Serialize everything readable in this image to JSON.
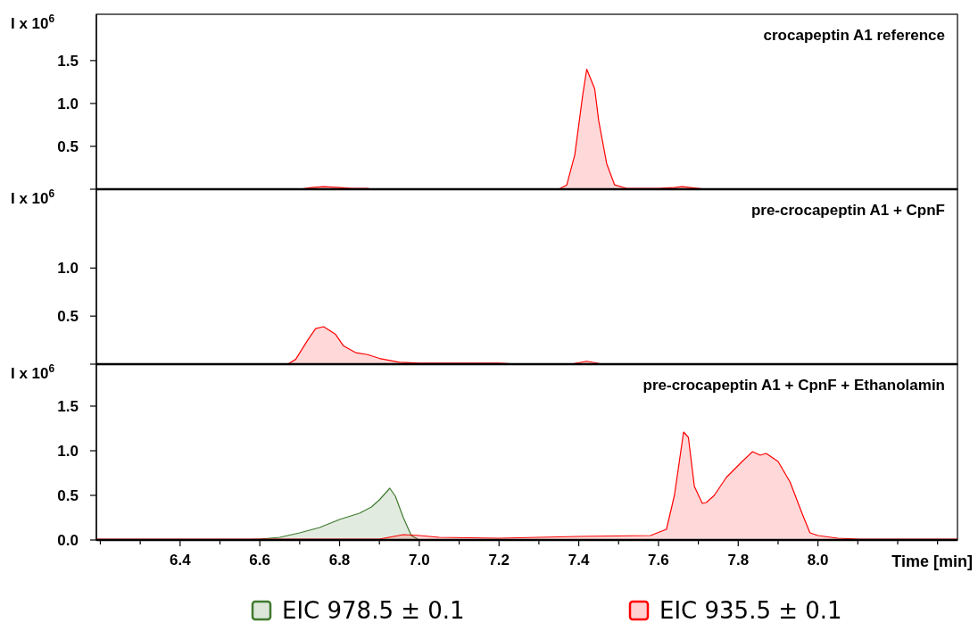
{
  "chart_data": [
    {
      "type": "area",
      "title": "crocapeptin A1 reference",
      "ylabel": "I x 10$^{6}$",
      "xlim": [
        6.19,
        8.35
      ],
      "ylim": [
        0,
        2.04
      ],
      "yticks": [
        {
          "value": 0,
          "label": null
        },
        {
          "value": 0.5,
          "label": "0.5"
        },
        {
          "value": 1.0,
          "label": "1.0"
        },
        {
          "value": 1.5,
          "label": "1.5"
        }
      ],
      "tick_labels": "y",
      "legend": false,
      "series": [
        {
          "color": "#ff0000",
          "x": [
            6.19,
            6.7,
            6.73,
            6.76,
            6.8,
            6.83,
            6.87,
            6.88,
            7.35,
            7.37,
            7.39,
            7.41,
            7.42,
            7.44,
            7.45,
            7.47,
            7.49,
            7.52,
            7.6,
            7.64,
            7.66,
            7.7,
            7.72,
            8.35
          ],
          "values": [
            0,
            0,
            0.02,
            0.03,
            0.02,
            0.01,
            0.01,
            0,
            0,
            0.05,
            0.4,
            1.1,
            1.4,
            1.17,
            0.8,
            0.3,
            0.05,
            0.01,
            0.01,
            0.02,
            0.03,
            0.01,
            0,
            0
          ]
        }
      ]
    },
    {
      "type": "area",
      "title": "pre-crocapeptin A1 + CpnF",
      "ylabel": "I x 10$^{6}$",
      "xlim": [
        6.19,
        8.35
      ],
      "ylim": [
        0,
        1.82
      ],
      "yticks": [
        {
          "value": 0,
          "label": null
        },
        {
          "value": 0.5,
          "label": "0.5"
        },
        {
          "value": 1.0,
          "label": "1.0"
        }
      ],
      "tick_labels": "y",
      "legend": false,
      "series": [
        {
          "color": "#ff0000",
          "x": [
            6.19,
            6.67,
            6.69,
            6.72,
            6.74,
            6.76,
            6.79,
            6.81,
            6.84,
            6.87,
            6.9,
            6.95,
            7.0,
            7.2,
            7.25,
            7.38,
            7.42,
            7.46,
            8.35
          ],
          "values": [
            0,
            0,
            0.05,
            0.25,
            0.37,
            0.39,
            0.31,
            0.19,
            0.12,
            0.1,
            0.06,
            0.02,
            0.01,
            0.01,
            0,
            0,
            0.03,
            0,
            0
          ]
        }
      ]
    },
    {
      "type": "area",
      "title": "pre-crocapeptin A1 + CpnF + Ethanolamin",
      "ylabel": "I x 10$^{6}$",
      "xlabel": "Time [min]",
      "xlim": [
        6.19,
        8.35
      ],
      "ylim": [
        0,
        1.97
      ],
      "xticks": [
        {
          "value": 6.2,
          "label": null
        },
        {
          "value": 6.3,
          "label": null
        },
        {
          "value": 6.4,
          "label": "6.4"
        },
        {
          "value": 6.5,
          "label": null
        },
        {
          "value": 6.6,
          "label": "6.6"
        },
        {
          "value": 6.7,
          "label": null
        },
        {
          "value": 6.8,
          "label": "6.8"
        },
        {
          "value": 6.9,
          "label": null
        },
        {
          "value": 7.0,
          "label": "7.0"
        },
        {
          "value": 7.1,
          "label": null
        },
        {
          "value": 7.2,
          "label": "7.2"
        },
        {
          "value": 7.3,
          "label": null
        },
        {
          "value": 7.4,
          "label": "7.4"
        },
        {
          "value": 7.5,
          "label": null
        },
        {
          "value": 7.6,
          "label": "7.6"
        },
        {
          "value": 7.7,
          "label": null
        },
        {
          "value": 7.8,
          "label": "7.8"
        },
        {
          "value": 7.9,
          "label": null
        },
        {
          "value": 8.0,
          "label": "8.0"
        },
        {
          "value": 8.1,
          "label": null
        },
        {
          "value": 8.2,
          "label": null
        },
        {
          "value": 8.3,
          "label": null
        }
      ],
      "yticks": [
        {
          "value": 0,
          "label": "0.0"
        },
        {
          "value": 0.5,
          "label": "0.5"
        },
        {
          "value": 1.0,
          "label": "1.0"
        },
        {
          "value": 1.5,
          "label": "1.5"
        }
      ],
      "legend": "bottom",
      "series": [
        {
          "name": "EIC 978.5 ± 0.1",
          "color": "#3f7a2e",
          "x": [
            6.19,
            6.55,
            6.6,
            6.65,
            6.7,
            6.75,
            6.8,
            6.85,
            6.88,
            6.9,
            6.926,
            6.94,
            6.96,
            6.98,
            7.0,
            8.35
          ],
          "values": [
            0,
            0,
            0.01,
            0.03,
            0.08,
            0.14,
            0.23,
            0.3,
            0.37,
            0.45,
            0.58,
            0.49,
            0.25,
            0.05,
            0,
            0
          ]
        },
        {
          "name": "EIC 935.5 ± 0.1",
          "color": "#ff0000",
          "x": [
            6.19,
            6.9,
            6.96,
            7.0,
            7.05,
            7.2,
            7.4,
            7.58,
            7.62,
            7.64,
            7.663,
            7.675,
            7.69,
            7.71,
            7.72,
            7.74,
            7.77,
            7.81,
            7.836,
            7.855,
            7.87,
            7.9,
            7.93,
            7.96,
            7.98,
            8.0,
            8.05,
            8.1,
            8.35
          ],
          "values": [
            0.01,
            0.01,
            0.06,
            0.05,
            0.03,
            0.02,
            0.04,
            0.05,
            0.12,
            0.5,
            1.21,
            1.15,
            0.6,
            0.41,
            0.42,
            0.5,
            0.7,
            0.88,
            0.99,
            0.95,
            0.97,
            0.88,
            0.65,
            0.3,
            0.08,
            0.05,
            0.02,
            0.01,
            0.01
          ]
        }
      ]
    }
  ]
}
